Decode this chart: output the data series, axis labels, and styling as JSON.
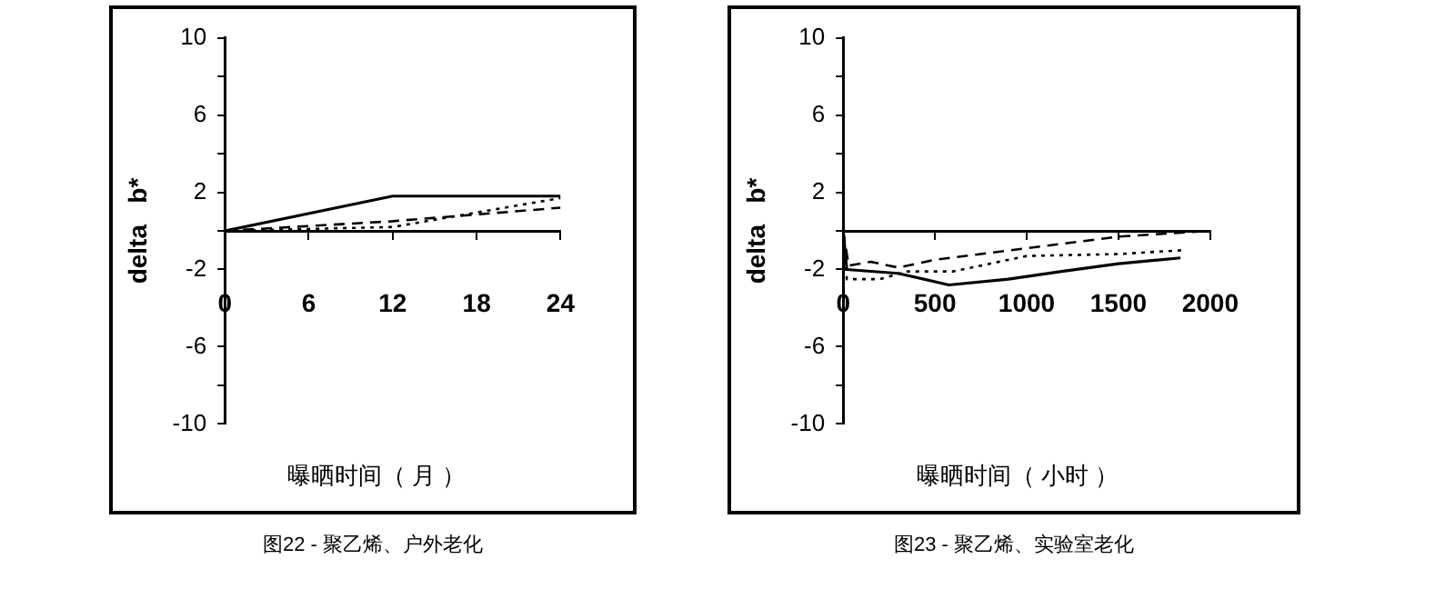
{
  "chart_data": [
    {
      "type": "line",
      "title": "图22 - 聚乙烯、户外老化",
      "xlabel": "曝晒时间（ 月 ）",
      "ylabel": "delta   b*",
      "xlim": [
        0,
        24
      ],
      "xticks": [
        0,
        6,
        12,
        18,
        24
      ],
      "ylim": [
        -10,
        10
      ],
      "yticks": [
        {
          "value": -10,
          "label": "-10"
        },
        {
          "value": -8,
          "label": null
        },
        {
          "value": -6,
          "label": "-6"
        },
        {
          "value": -4,
          "label": null
        },
        {
          "value": -2,
          "label": "-2"
        },
        {
          "value": 0,
          "label": null
        },
        {
          "value": 2,
          "label": "2"
        },
        {
          "value": 4,
          "label": null
        },
        {
          "value": 6,
          "label": "6"
        },
        {
          "value": 8,
          "label": null
        },
        {
          "value": 10,
          "label": "10"
        }
      ],
      "grid": false,
      "legend": false,
      "marker": "none",
      "series": [
        {
          "color": "#000000",
          "line_style": "solid",
          "x": [
            0,
            12,
            24
          ],
          "values": [
            0,
            1.8,
            1.8
          ]
        },
        {
          "color": "#000000",
          "line_style": "dashed",
          "x": [
            0,
            12,
            24
          ],
          "values": [
            0,
            0.5,
            1.2
          ]
        },
        {
          "color": "#000000",
          "line_style": "dotted",
          "x": [
            0,
            12,
            24
          ],
          "values": [
            0,
            0.2,
            1.7
          ]
        }
      ]
    },
    {
      "type": "line",
      "title": "图23 - 聚乙烯、实验室老化",
      "xlabel": "曝晒时间（ 小时 ）",
      "ylabel": "delta   b*",
      "xlim": [
        0,
        2000
      ],
      "xticks": [
        0,
        500,
        1000,
        1500,
        2000
      ],
      "ylim": [
        -10,
        10
      ],
      "yticks": [
        {
          "value": -10,
          "label": "-10"
        },
        {
          "value": -8,
          "label": null
        },
        {
          "value": -6,
          "label": "-6"
        },
        {
          "value": -4,
          "label": null
        },
        {
          "value": -2,
          "label": "-2"
        },
        {
          "value": 0,
          "label": null
        },
        {
          "value": 2,
          "label": "2"
        },
        {
          "value": 4,
          "label": null
        },
        {
          "value": 6,
          "label": "6"
        },
        {
          "value": 8,
          "label": null
        },
        {
          "value": 10,
          "label": "10"
        }
      ],
      "grid": false,
      "legend": false,
      "marker": "none",
      "series": [
        {
          "color": "#000000",
          "line_style": "solid",
          "x": [
            0,
            20,
            300,
            576,
            900,
            1190,
            1500,
            1838
          ],
          "values": [
            0,
            -2.0,
            -2.2,
            -2.8,
            -2.5,
            -2.1,
            -1.7,
            -1.4
          ]
        },
        {
          "color": "#000000",
          "line_style": "dashed",
          "x": [
            0,
            30,
            150,
            300,
            500,
            1000,
            1500,
            2000
          ],
          "values": [
            0,
            -1.8,
            -1.6,
            -1.9,
            -1.5,
            -0.9,
            -0.3,
            0
          ]
        },
        {
          "color": "#000000",
          "line_style": "dotted",
          "x": [
            0,
            20,
            200,
            350,
            600,
            1000,
            1500,
            1850
          ],
          "values": [
            0,
            -2.5,
            -2.5,
            -2.1,
            -2.1,
            -1.3,
            -1.2,
            -1.0
          ]
        }
      ]
    }
  ]
}
